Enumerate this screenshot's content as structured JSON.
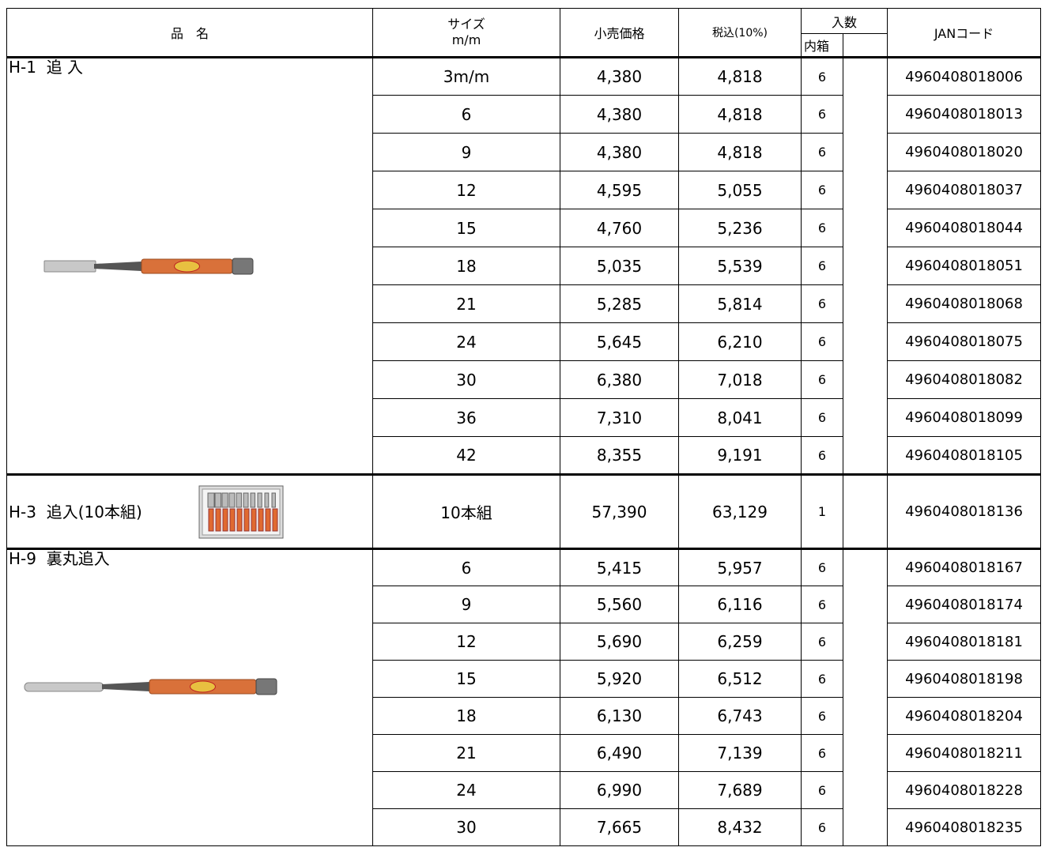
{
  "header": {
    "name": "品　名",
    "size": "サイズ",
    "size_unit": "m/m",
    "retail": "小売価格",
    "tax": "税込(10%)",
    "qty": "入数",
    "inner": "内箱",
    "jan": "JANコード"
  },
  "groups": [
    {
      "name": "H-1  追 入",
      "rows": [
        [
          "3m/m",
          "4,380",
          "4,818",
          "6",
          "4960408018006"
        ],
        [
          "6",
          "4,380",
          "4,818",
          "6",
          "4960408018013"
        ],
        [
          "9",
          "4,380",
          "4,818",
          "6",
          "4960408018020"
        ],
        [
          "12",
          "4,595",
          "5,055",
          "6",
          "4960408018037"
        ],
        [
          "15",
          "4,760",
          "5,236",
          "6",
          "4960408018044"
        ],
        [
          "18",
          "5,035",
          "5,539",
          "6",
          "4960408018051"
        ],
        [
          "21",
          "5,285",
          "5,814",
          "6",
          "4960408018068"
        ],
        [
          "24",
          "5,645",
          "6,210",
          "6",
          "4960408018075"
        ],
        [
          "30",
          "6,380",
          "7,018",
          "6",
          "4960408018082"
        ],
        [
          "36",
          "7,310",
          "8,041",
          "6",
          "4960408018099"
        ],
        [
          "42",
          "8,355",
          "9,191",
          "6",
          "4960408018105"
        ]
      ]
    },
    {
      "name": "H-3  追入(10本組)",
      "rows": [
        [
          "10本組",
          "57,390",
          "63,129",
          "1",
          "4960408018136"
        ]
      ]
    },
    {
      "name": "H-9  裏丸追入",
      "rows": [
        [
          "6",
          "5,415",
          "5,957",
          "6",
          "4960408018167"
        ],
        [
          "9",
          "5,560",
          "6,116",
          "6",
          "4960408018174"
        ],
        [
          "12",
          "5,690",
          "6,259",
          "6",
          "4960408018181"
        ],
        [
          "15",
          "5,920",
          "6,512",
          "6",
          "4960408018198"
        ],
        [
          "18",
          "6,130",
          "6,743",
          "6",
          "4960408018204"
        ],
        [
          "21",
          "6,490",
          "7,139",
          "6",
          "4960408018211"
        ],
        [
          "24",
          "6,990",
          "7,689",
          "6",
          "4960408018228"
        ],
        [
          "30",
          "7,665",
          "8,432",
          "6",
          "4960408018235"
        ]
      ]
    }
  ]
}
